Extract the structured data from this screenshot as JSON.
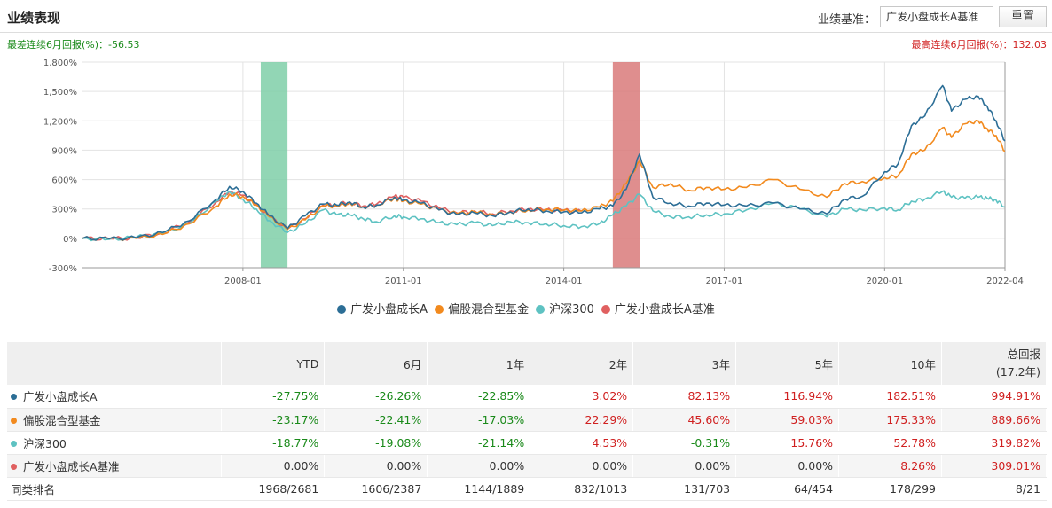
{
  "header": {
    "title": "业绩表现",
    "benchmark_label": "业绩基准：",
    "benchmark_value": "广发小盘成长A基准",
    "reset_label": "重置"
  },
  "extremes": {
    "worst": "最差连续6月回报(%)：-56.53",
    "best": "最高连续6月回报(%)：132.03"
  },
  "colors": {
    "fund": "#2c6e96",
    "peer": "#f28a1e",
    "index": "#5ec2c2",
    "benchmark": "#e06060",
    "green_band": "#7fcfa8",
    "red_band": "#d97a7a"
  },
  "chart_data": {
    "type": "line",
    "x_ticks": [
      "2008-01",
      "2011-01",
      "2014-01",
      "2017-01",
      "2020-01",
      "2022-04"
    ],
    "y_ticks": [
      "1,800%",
      "1,500%",
      "1,200%",
      "900%",
      "600%",
      "300%",
      "0%",
      "-300%"
    ],
    "ylim": [
      -300,
      1800
    ],
    "xlim": [
      "2005-01",
      "2022-04"
    ],
    "shaded_periods": [
      {
        "label": "worst_6m",
        "start": "2008-05",
        "end": "2008-11",
        "color": "green"
      },
      {
        "label": "best_6m",
        "start": "2014-12",
        "end": "2015-06",
        "color": "red"
      }
    ],
    "series": [
      {
        "name": "广发小盘成长A",
        "key": "fund",
        "points": [
          [
            "2005-01",
            0
          ],
          [
            "2005-07",
            -5
          ],
          [
            "2006-01",
            5
          ],
          [
            "2006-07",
            60
          ],
          [
            "2007-01",
            180
          ],
          [
            "2007-07",
            400
          ],
          [
            "2007-10",
            530
          ],
          [
            "2008-01",
            480
          ],
          [
            "2008-04",
            360
          ],
          [
            "2008-07",
            230
          ],
          [
            "2008-11",
            100
          ],
          [
            "2009-03",
            230
          ],
          [
            "2009-07",
            350
          ],
          [
            "2009-10",
            340
          ],
          [
            "2010-01",
            370
          ],
          [
            "2010-04",
            320
          ],
          [
            "2010-07",
            340
          ],
          [
            "2010-11",
            420
          ],
          [
            "2011-01",
            390
          ],
          [
            "2011-05",
            360
          ],
          [
            "2011-09",
            290
          ],
          [
            "2012-01",
            240
          ],
          [
            "2012-05",
            260
          ],
          [
            "2012-09",
            230
          ],
          [
            "2013-01",
            270
          ],
          [
            "2013-05",
            300
          ],
          [
            "2013-09",
            280
          ],
          [
            "2014-01",
            270
          ],
          [
            "2014-05",
            260
          ],
          [
            "2014-09",
            300
          ],
          [
            "2014-12",
            330
          ],
          [
            "2015-03",
            500
          ],
          [
            "2015-06",
            860
          ],
          [
            "2015-09",
            420
          ],
          [
            "2016-01",
            360
          ],
          [
            "2016-05",
            330
          ],
          [
            "2016-09",
            360
          ],
          [
            "2017-01",
            340
          ],
          [
            "2017-06",
            330
          ],
          [
            "2017-12",
            360
          ],
          [
            "2018-06",
            300
          ],
          [
            "2018-12",
            250
          ],
          [
            "2019-04",
            400
          ],
          [
            "2019-08",
            430
          ],
          [
            "2020-01",
            680
          ],
          [
            "2020-04",
            760
          ],
          [
            "2020-07",
            1150
          ],
          [
            "2020-10",
            1250
          ],
          [
            "2021-02",
            1560
          ],
          [
            "2021-04",
            1300
          ],
          [
            "2021-07",
            1420
          ],
          [
            "2021-10",
            1450
          ],
          [
            "2021-12",
            1350
          ],
          [
            "2022-02",
            1200
          ],
          [
            "2022-04",
            995
          ]
        ]
      },
      {
        "name": "偏股混合型基金",
        "key": "peer",
        "points": [
          [
            "2005-01",
            0
          ],
          [
            "2005-07",
            -5
          ],
          [
            "2006-01",
            0
          ],
          [
            "2006-07",
            40
          ],
          [
            "2007-01",
            150
          ],
          [
            "2007-07",
            330
          ],
          [
            "2007-10",
            450
          ],
          [
            "2008-01",
            430
          ],
          [
            "2008-04",
            340
          ],
          [
            "2008-07",
            220
          ],
          [
            "2008-11",
            90
          ],
          [
            "2009-03",
            190
          ],
          [
            "2009-07",
            330
          ],
          [
            "2009-10",
            330
          ],
          [
            "2010-01",
            360
          ],
          [
            "2010-04",
            320
          ],
          [
            "2010-07",
            340
          ],
          [
            "2010-11",
            410
          ],
          [
            "2011-01",
            380
          ],
          [
            "2011-05",
            350
          ],
          [
            "2011-09",
            290
          ],
          [
            "2012-01",
            250
          ],
          [
            "2012-05",
            270
          ],
          [
            "2012-09",
            240
          ],
          [
            "2013-01",
            270
          ],
          [
            "2013-05",
            290
          ],
          [
            "2013-09",
            300
          ],
          [
            "2014-01",
            290
          ],
          [
            "2014-05",
            280
          ],
          [
            "2014-09",
            320
          ],
          [
            "2014-12",
            380
          ],
          [
            "2015-03",
            560
          ],
          [
            "2015-06",
            790
          ],
          [
            "2015-09",
            520
          ],
          [
            "2016-01",
            560
          ],
          [
            "2016-05",
            490
          ],
          [
            "2016-09",
            520
          ],
          [
            "2017-01",
            500
          ],
          [
            "2017-06",
            520
          ],
          [
            "2017-12",
            600
          ],
          [
            "2018-06",
            500
          ],
          [
            "2018-12",
            420
          ],
          [
            "2019-04",
            560
          ],
          [
            "2019-08",
            580
          ],
          [
            "2020-01",
            620
          ],
          [
            "2020-04",
            640
          ],
          [
            "2020-07",
            860
          ],
          [
            "2020-10",
            900
          ],
          [
            "2021-02",
            1130
          ],
          [
            "2021-04",
            1030
          ],
          [
            "2021-07",
            1170
          ],
          [
            "2021-10",
            1200
          ],
          [
            "2021-12",
            1120
          ],
          [
            "2022-02",
            1050
          ],
          [
            "2022-04",
            890
          ]
        ]
      },
      {
        "name": "沪深300",
        "key": "index",
        "points": [
          [
            "2005-01",
            0
          ],
          [
            "2005-07",
            -10
          ],
          [
            "2006-01",
            10
          ],
          [
            "2006-07",
            50
          ],
          [
            "2007-01",
            150
          ],
          [
            "2007-07",
            380
          ],
          [
            "2007-10",
            480
          ],
          [
            "2008-01",
            400
          ],
          [
            "2008-04",
            300
          ],
          [
            "2008-07",
            180
          ],
          [
            "2008-11",
            60
          ],
          [
            "2009-03",
            150
          ],
          [
            "2009-07",
            290
          ],
          [
            "2009-10",
            240
          ],
          [
            "2010-01",
            240
          ],
          [
            "2010-04",
            200
          ],
          [
            "2010-07",
            170
          ],
          [
            "2010-11",
            230
          ],
          [
            "2011-01",
            220
          ],
          [
            "2011-05",
            200
          ],
          [
            "2011-09",
            160
          ],
          [
            "2012-01",
            140
          ],
          [
            "2012-05",
            160
          ],
          [
            "2012-09",
            130
          ],
          [
            "2013-01",
            170
          ],
          [
            "2013-05",
            160
          ],
          [
            "2013-09",
            150
          ],
          [
            "2014-01",
            130
          ],
          [
            "2014-05",
            120
          ],
          [
            "2014-09",
            150
          ],
          [
            "2014-12",
            240
          ],
          [
            "2015-03",
            330
          ],
          [
            "2015-06",
            450
          ],
          [
            "2015-09",
            280
          ],
          [
            "2016-01",
            220
          ],
          [
            "2016-05",
            220
          ],
          [
            "2016-09",
            240
          ],
          [
            "2017-01",
            250
          ],
          [
            "2017-06",
            290
          ],
          [
            "2017-12",
            360
          ],
          [
            "2018-06",
            300
          ],
          [
            "2018-12",
            220
          ],
          [
            "2019-04",
            300
          ],
          [
            "2019-08",
            290
          ],
          [
            "2020-01",
            310
          ],
          [
            "2020-04",
            290
          ],
          [
            "2020-07",
            380
          ],
          [
            "2020-10",
            400
          ],
          [
            "2021-02",
            480
          ],
          [
            "2021-04",
            420
          ],
          [
            "2021-07",
            410
          ],
          [
            "2021-10",
            420
          ],
          [
            "2021-12",
            410
          ],
          [
            "2022-02",
            390
          ],
          [
            "2022-04",
            320
          ]
        ]
      },
      {
        "name": "广发小盘成长A基准",
        "key": "benchmark",
        "points": [
          [
            "2005-01",
            0
          ],
          [
            "2005-07",
            -5
          ],
          [
            "2006-01",
            5
          ],
          [
            "2006-07",
            55
          ],
          [
            "2007-01",
            170
          ],
          [
            "2007-07",
            370
          ],
          [
            "2007-10",
            480
          ],
          [
            "2008-01",
            440
          ],
          [
            "2008-04",
            340
          ],
          [
            "2008-07",
            220
          ],
          [
            "2008-11",
            95
          ],
          [
            "2009-03",
            200
          ],
          [
            "2009-07",
            340
          ],
          [
            "2009-10",
            340
          ],
          [
            "2010-01",
            370
          ],
          [
            "2010-04",
            330
          ],
          [
            "2010-07",
            350
          ],
          [
            "2010-11",
            430
          ],
          [
            "2011-01",
            420
          ],
          [
            "2011-05",
            380
          ],
          [
            "2011-09",
            310
          ],
          [
            "2012-01",
            260
          ],
          [
            "2012-05",
            280
          ],
          [
            "2012-09",
            250
          ],
          [
            "2013-01",
            280
          ],
          [
            "2013-05",
            300
          ],
          [
            "2013-09",
            290
          ],
          [
            "2014-01",
            285
          ],
          [
            "2014-05",
            275
          ]
        ]
      }
    ]
  },
  "legend": [
    {
      "label": "广发小盘成长A",
      "key": "fund"
    },
    {
      "label": "偏股混合型基金",
      "key": "peer"
    },
    {
      "label": "沪深300",
      "key": "index"
    },
    {
      "label": "广发小盘成长A基准",
      "key": "benchmark"
    }
  ],
  "table": {
    "headers": [
      "",
      "YTD",
      "6月",
      "1年",
      "2年",
      "3年",
      "5年",
      "10年"
    ],
    "total_header_line1": "总回报",
    "total_header_line2": "(17.2年)",
    "rows": [
      {
        "name": "广发小盘成长A",
        "key": "fund",
        "values": [
          "-27.75%",
          "-26.26%",
          "-22.85%",
          "3.02%",
          "82.13%",
          "116.94%",
          "182.51%",
          "994.91%"
        ]
      },
      {
        "name": "偏股混合型基金",
        "key": "peer",
        "values": [
          "-23.17%",
          "-22.41%",
          "-17.03%",
          "22.29%",
          "45.60%",
          "59.03%",
          "175.33%",
          "889.66%"
        ]
      },
      {
        "name": "沪深300",
        "key": "index",
        "values": [
          "-18.77%",
          "-19.08%",
          "-21.14%",
          "4.53%",
          "-0.31%",
          "15.76%",
          "52.78%",
          "319.82%"
        ]
      },
      {
        "name": "广发小盘成长A基准",
        "key": "benchmark",
        "values": [
          "0.00%",
          "0.00%",
          "0.00%",
          "0.00%",
          "0.00%",
          "0.00%",
          "8.26%",
          "309.01%"
        ]
      }
    ],
    "rank_row": {
      "name": "同类排名",
      "values": [
        "1968/2681",
        "1606/2387",
        "1144/1889",
        "832/1013",
        "131/703",
        "64/454",
        "178/299",
        "8/21"
      ]
    }
  }
}
